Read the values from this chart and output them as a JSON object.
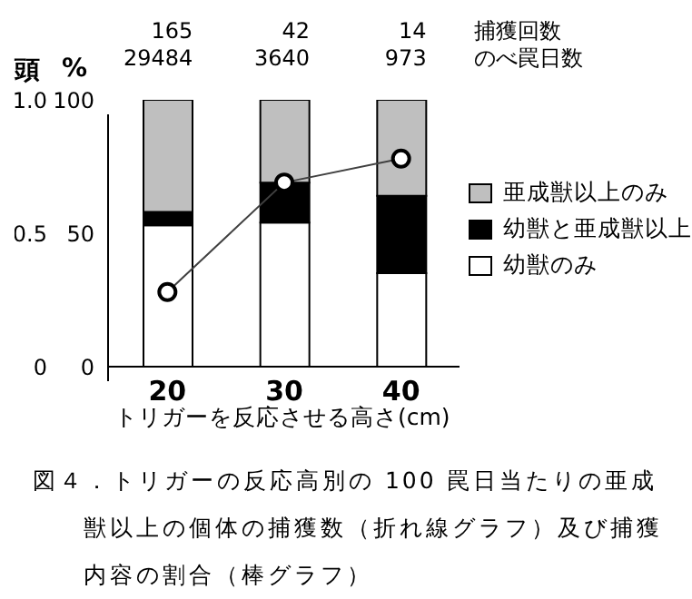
{
  "chart_data": {
    "type": "bar",
    "stacked": true,
    "title": "図４．トリガーの反応高別の 100 罠日当たりの亜成獣以上の個体の捕獲数（折れ線グラフ）及び捕獲内容の割合（棒グラフ）",
    "categories": [
      "20",
      "30",
      "40"
    ],
    "xlabel": "トリガーを反応させる高さ(cm)",
    "ylabel": "%",
    "y2label": "頭",
    "series": [
      {
        "name": "幼獣のみ",
        "color": "#ffffff",
        "values": [
          53,
          54,
          35
        ]
      },
      {
        "name": "幼獣と亜成獣以上",
        "color": "#000000",
        "values": [
          5,
          15,
          29
        ]
      },
      {
        "name": "亜成獣以上のみ",
        "color": "#bfbfbf",
        "values": [
          42,
          31,
          36
        ]
      },
      {
        "type": "line",
        "axis": "y2",
        "color": "#404040",
        "marker": "circle",
        "values": [
          0.28,
          0.69,
          0.78
        ]
      }
    ],
    "ylim": [
      0,
      100
    ],
    "yticks": [
      0,
      50,
      100
    ],
    "y2lim": [
      0,
      1
    ],
    "y2ticks": [
      0,
      {
        "value": 0.5,
        "label": "0.5"
      },
      {
        "value": 1,
        "label": "1.0"
      }
    ],
    "legend": "right",
    "grid": false,
    "annotations": [
      "165",
      "29484",
      "42",
      "3640",
      "14",
      "973",
      "捕獲回数",
      "のべ罠日数"
    ]
  }
}
